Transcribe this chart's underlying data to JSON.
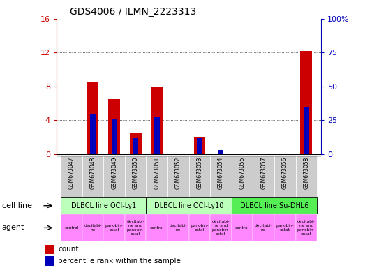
{
  "title": "GDS4006 / ILMN_2223313",
  "samples": [
    "GSM673047",
    "GSM673048",
    "GSM673049",
    "GSM673050",
    "GSM673051",
    "GSM673052",
    "GSM673053",
    "GSM673054",
    "GSM673055",
    "GSM673057",
    "GSM673056",
    "GSM673058"
  ],
  "count_values": [
    0,
    8.6,
    6.5,
    2.5,
    8.0,
    0,
    2.0,
    0,
    0,
    0,
    0,
    12.2
  ],
  "percentile_values": [
    0,
    30,
    26,
    12,
    28,
    0,
    12,
    3,
    0,
    0,
    0,
    35
  ],
  "ylim_left": [
    0,
    16
  ],
  "ylim_right": [
    0,
    100
  ],
  "yticks_left": [
    0,
    4,
    8,
    12,
    16
  ],
  "ytick_labels_left": [
    "0",
    "4",
    "8",
    "12",
    "16"
  ],
  "yticks_right": [
    0,
    25,
    50,
    75,
    100
  ],
  "ytick_labels_right": [
    "0",
    "25",
    "50",
    "75",
    "100%"
  ],
  "cell_line_labels": [
    "DLBCL line OCI-Ly1",
    "DLBCL line OCI-Ly10",
    "DLBCL line Su-DHL6"
  ],
  "cell_line_colors": [
    "#bbffbb",
    "#bbffbb",
    "#55ee55"
  ],
  "cell_line_ranges": [
    [
      0,
      4
    ],
    [
      4,
      8
    ],
    [
      8,
      12
    ]
  ],
  "agent_labels": [
    "control",
    "decitabi-\nne",
    "panobin-\nostat",
    "decitabi-\nne and\npanobin-\nostat",
    "control",
    "decitabi-\nne",
    "panobin-\nostat",
    "decitabi-\nne and\npanobin-\nostat",
    "control",
    "decitabi-\nne",
    "panobin-\nostat",
    "decitabi-\nne and\npanobin-\nostat"
  ],
  "agent_color": "#ff88ff",
  "bar_color_red": "#cc0000",
  "bar_color_blue": "#0000bb",
  "bar_width": 0.55,
  "blue_bar_width": 0.25,
  "tick_color_left": "#cc0000",
  "tick_color_right": "#0000bb",
  "sample_bg_color": "#cccccc",
  "legend_count_color": "#cc0000",
  "legend_pct_color": "#0000bb",
  "grid_dotted_color": "#333333"
}
